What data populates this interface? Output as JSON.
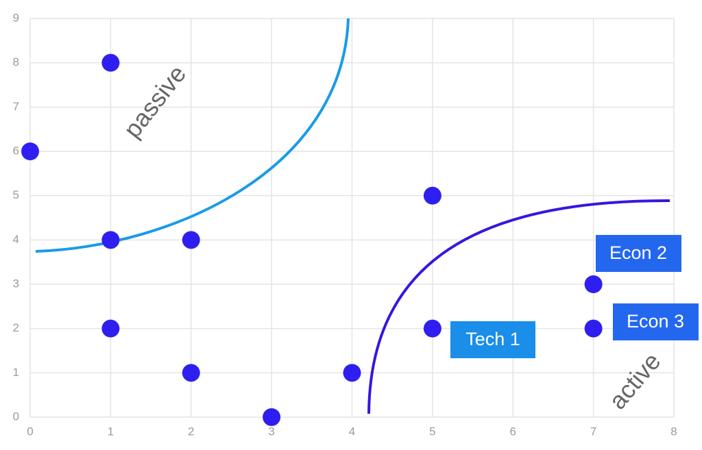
{
  "chart_data": {
    "type": "scatter",
    "x": [
      0,
      1,
      1,
      2,
      1,
      2,
      3,
      4,
      5,
      5,
      7,
      7
    ],
    "values": [
      6,
      8,
      4,
      4,
      2,
      1,
      0,
      1,
      5,
      2,
      3,
      2
    ],
    "color": "#2e1ff0",
    "xlim": [
      0,
      8
    ],
    "xticks": [
      0,
      1,
      2,
      3,
      4,
      5,
      6,
      7,
      8
    ],
    "ylim": [
      0,
      9
    ],
    "yticks": [
      0,
      1,
      2,
      3,
      4,
      5,
      6,
      7,
      8,
      9
    ],
    "grid": true,
    "annotations": [
      "passive",
      "active",
      "Tech 1",
      "Econ 2",
      "Econ 3"
    ]
  }
}
